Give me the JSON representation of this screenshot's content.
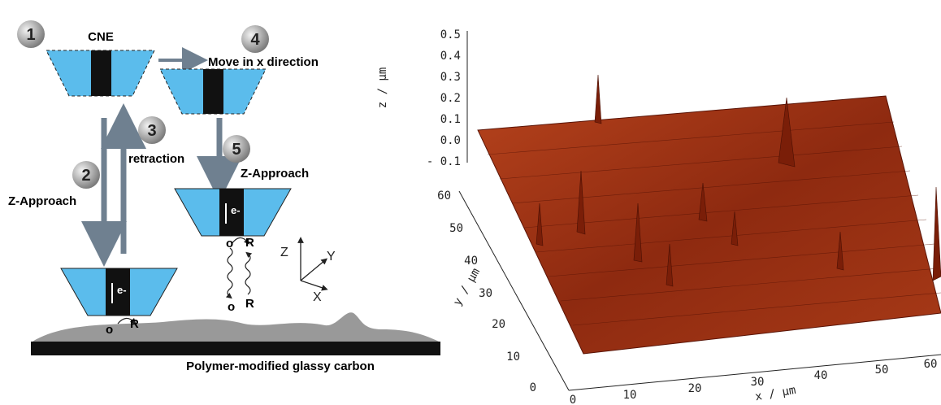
{
  "steps": [
    {
      "number": "1",
      "label": "CNE"
    },
    {
      "number": "2",
      "label": "Z-Approach"
    },
    {
      "number": "3",
      "label": "retraction"
    },
    {
      "number": "4",
      "label": "Move in x direction"
    },
    {
      "number": "5",
      "label": "Z-Approach"
    }
  ],
  "electron_label": "e-",
  "redox": {
    "oxidized": "o",
    "reduced": "R"
  },
  "coordinate_axes": [
    "Z",
    "Y",
    "X"
  ],
  "substrate_label": "Polymer-modified glassy carbon",
  "plot": {
    "z_axis_label": "z / µm",
    "z_ticks": [
      "0.5",
      "0.4",
      "0.3",
      "0.2",
      "0.1",
      "0.0",
      "- 0.1"
    ],
    "y_axis_label": "y / µm",
    "y_ticks": [
      "60",
      "50",
      "40",
      "30",
      "20",
      "10",
      "0"
    ],
    "x_axis_label": "x / µm",
    "x_ticks": [
      "0",
      "10",
      "20",
      "30",
      "40",
      "50",
      "60"
    ]
  }
}
